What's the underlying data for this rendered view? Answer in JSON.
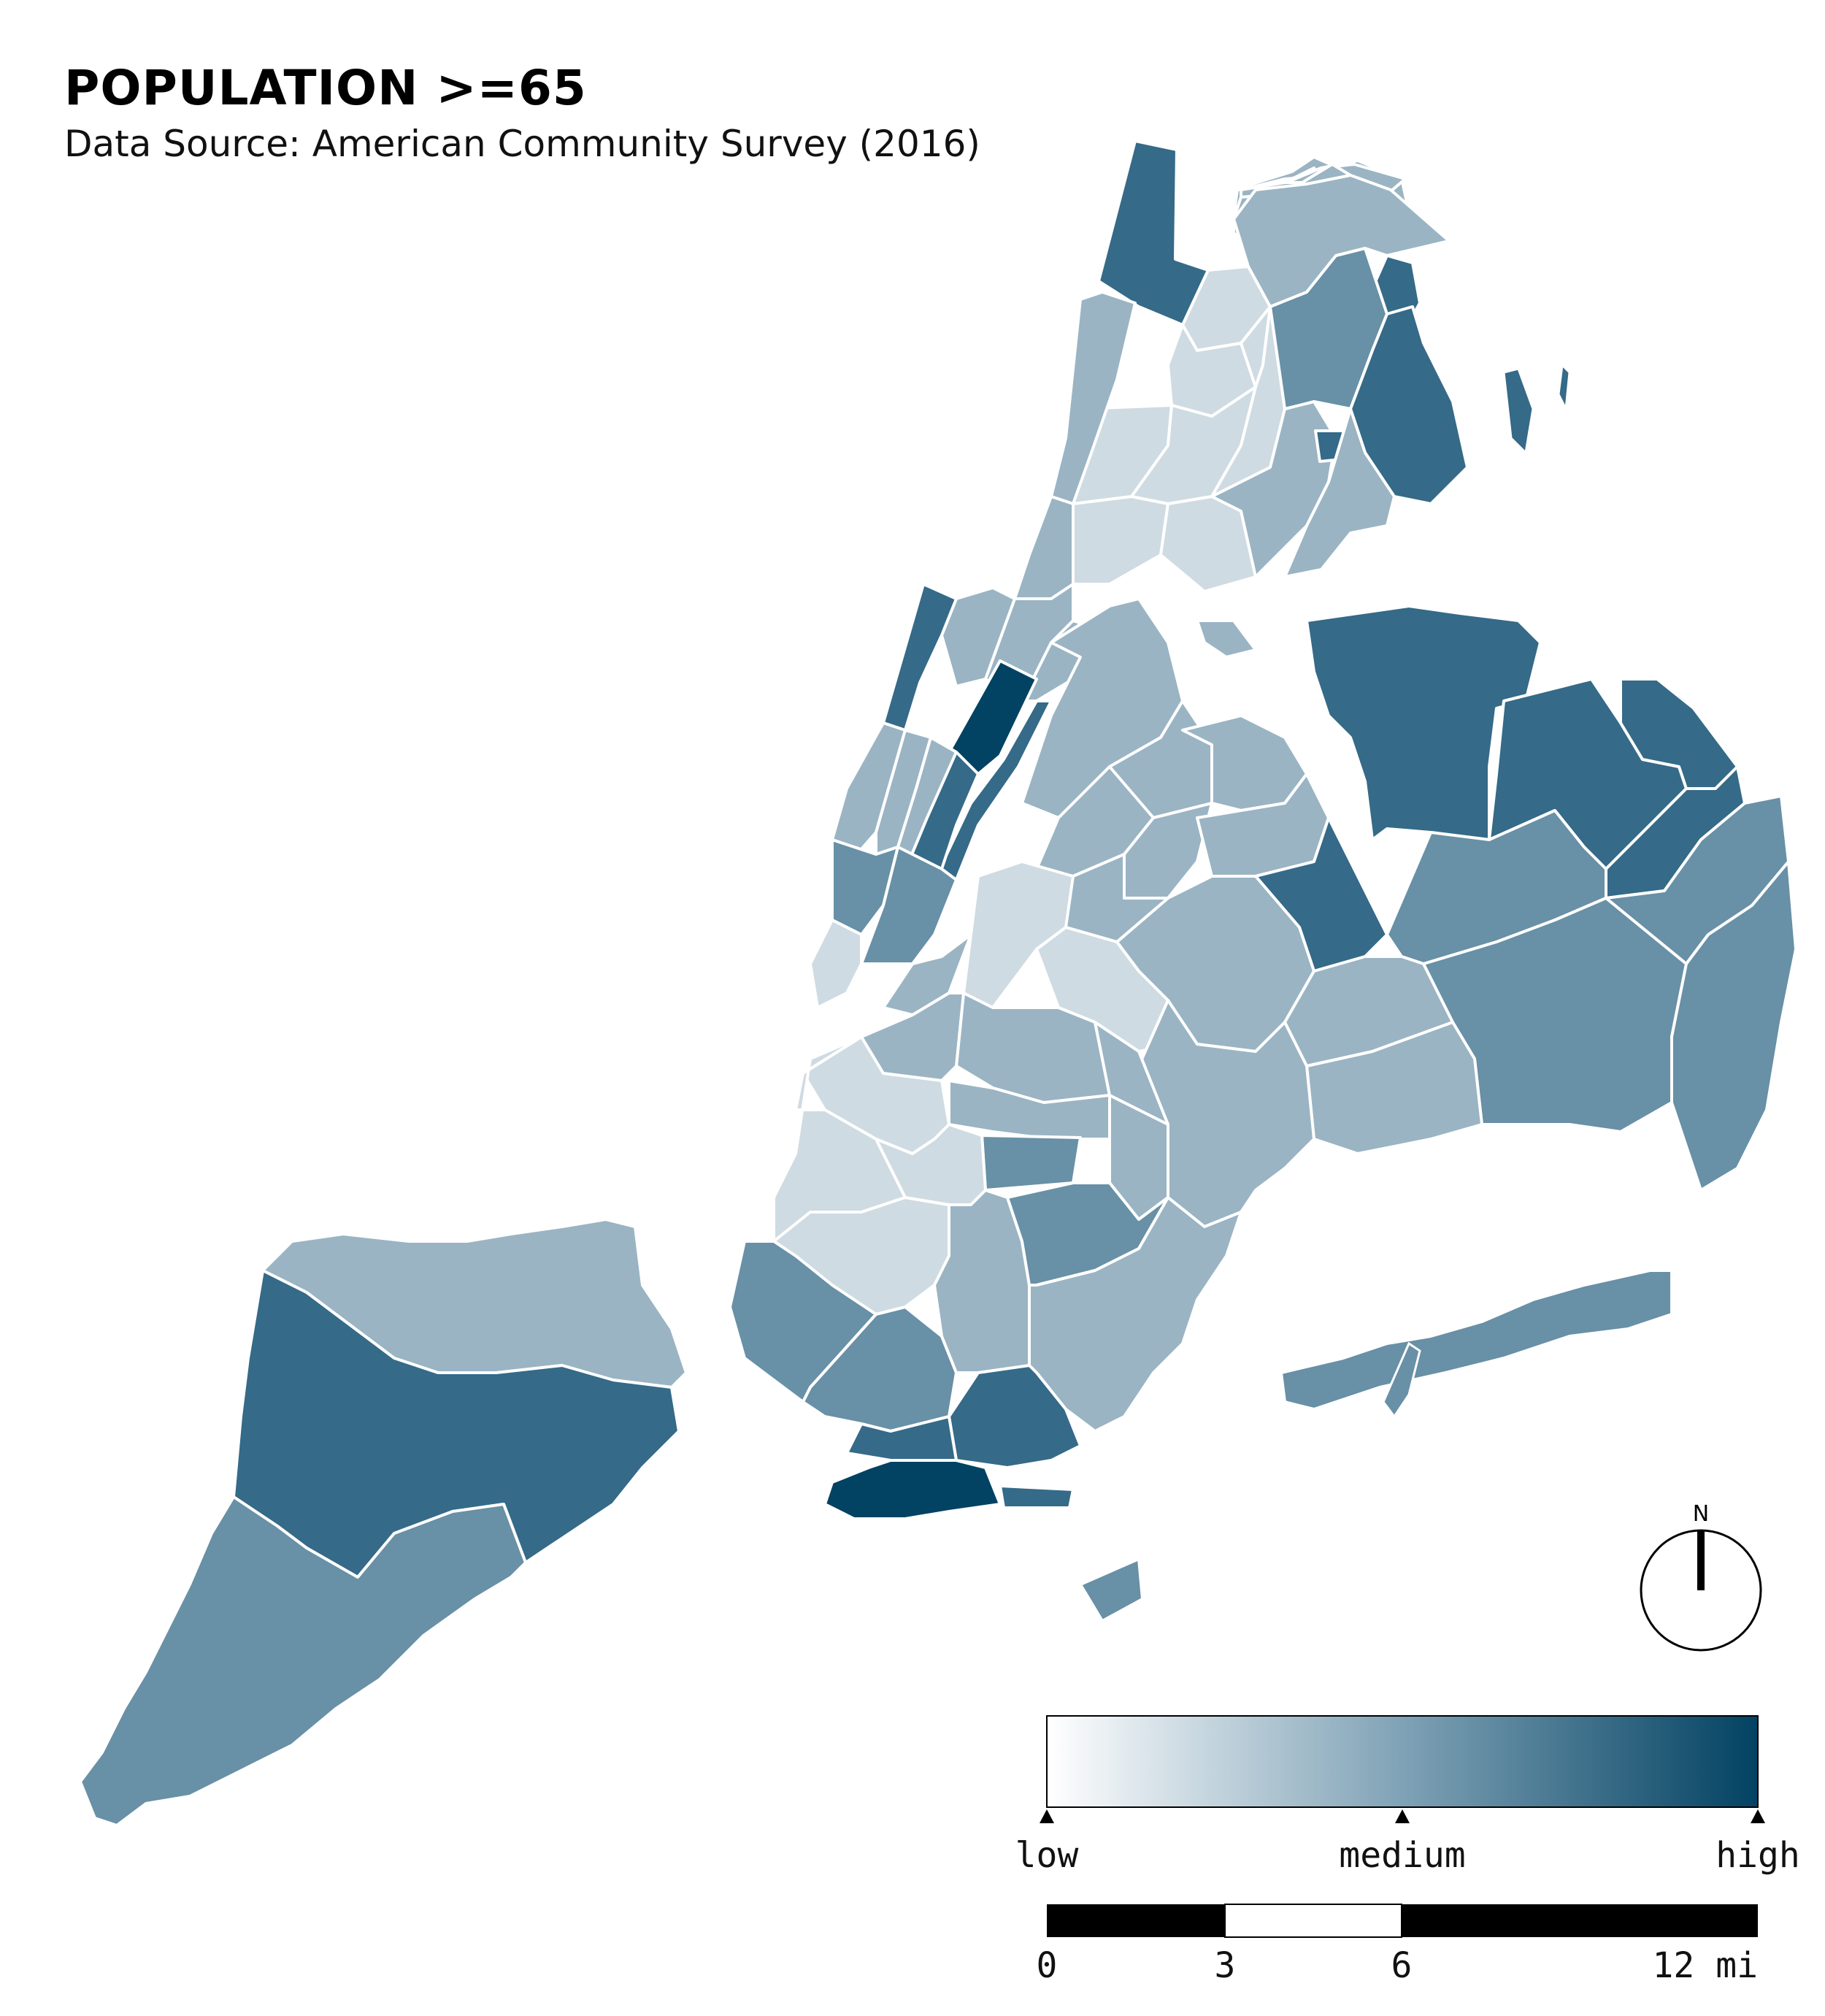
{
  "title": "POPULATION >=65",
  "subtitle": "Data Source: American Community Survey (2016)",
  "colors": {
    "c1": "#cfdbe2",
    "c2": "#9ab4c3",
    "c3": "#6890a6",
    "c4": "#356a88",
    "c5": "#024262",
    "border": "#ffffff"
  },
  "legend": {
    "low": "low",
    "medium": "medium",
    "high": "high"
  },
  "scalebar": {
    "ticks": [
      "0",
      "3",
      "6",
      "12 mi"
    ]
  },
  "north_arrow": {
    "label": "N"
  }
}
